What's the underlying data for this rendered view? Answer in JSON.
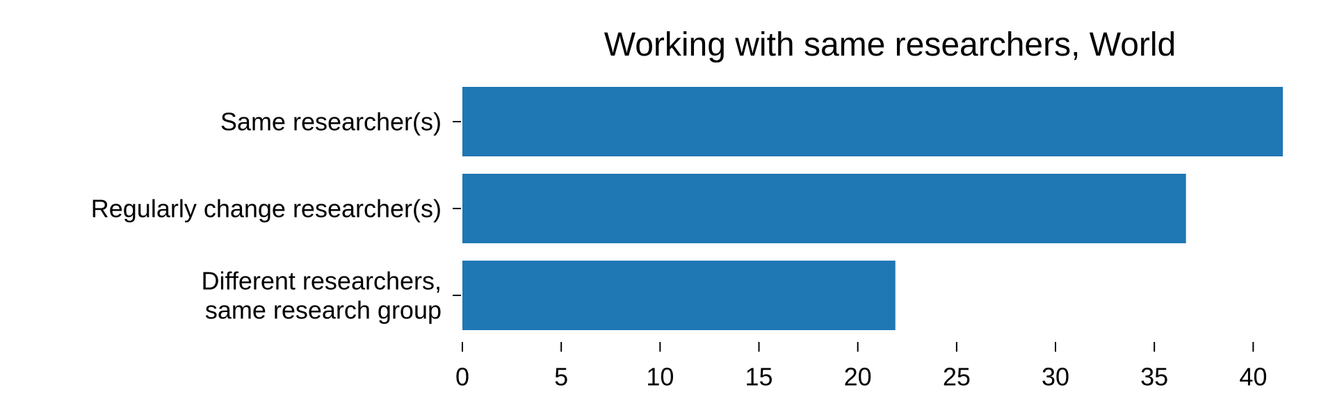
{
  "chart_data": {
    "type": "bar",
    "orientation": "horizontal",
    "title": "Working with same researchers, World",
    "xlabel": "",
    "ylabel": "",
    "categories": [
      [
        "Same researcher(s)"
      ],
      [
        "Regularly change researcher(s)"
      ],
      [
        "Different researchers,",
        "same research group"
      ]
    ],
    "values": [
      41.5,
      36.6,
      21.9
    ],
    "xlim": [
      0,
      41.5
    ],
    "xticks": [
      0,
      5,
      10,
      15,
      20,
      25,
      30,
      35,
      40
    ],
    "color": "#1f77b4",
    "grid": false,
    "legend": "none"
  }
}
